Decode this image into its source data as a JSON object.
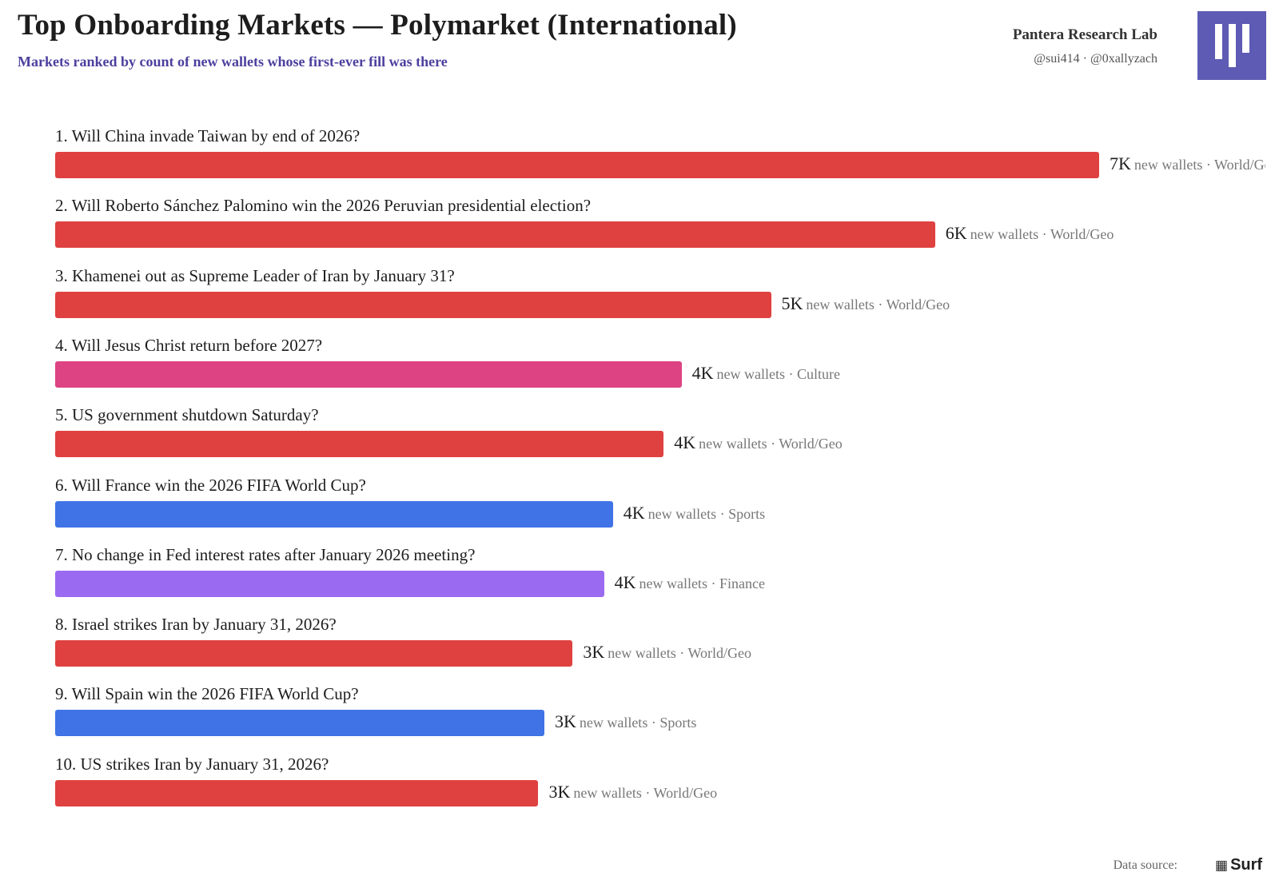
{
  "header": {
    "title": "Top Onboarding Markets — Polymarket (International)",
    "subtitle": "Markets ranked by count of new wallets whose first-ever fill was there",
    "brand_name": "Pantera Research Lab",
    "brand_handles": "@sui414 · @0xallyzach"
  },
  "footer": {
    "data_source_label": "Data source:",
    "source_name": "Surf"
  },
  "colors": {
    "World/Geo": "#df4140",
    "Culture": "#dd4383",
    "Sports": "#3f73e6",
    "Finance": "#9a6bf0",
    "subtitle": "#4b3f9e",
    "logo": "#5d5bb3"
  },
  "chart_data": {
    "type": "bar",
    "orientation": "horizontal",
    "value_label_suffix": "new wallets",
    "xlim": [
      0,
      7
    ],
    "grid": false,
    "categories": [
      "1. Will China invade Taiwan by end of 2026?",
      "2. Will Roberto Sánchez Palomino win the 2026 Peruvian presidential election?",
      "3. Khamenei out as Supreme Leader of Iran by January 31?",
      "4. Will Jesus Christ return before 2027?",
      "5. US government shutdown Saturday?",
      "6. Will France win the 2026 FIFA World Cup?",
      "7. No change in Fed interest rates after January 2026 meeting?",
      "8. Israel strikes Iran by January 31, 2026?",
      "9. Will Spain win the 2026 FIFA World Cup?",
      "10. US strikes Iran by January 31, 2026?"
    ],
    "values": [
      7.0,
      5.9,
      4.8,
      4.2,
      4.08,
      3.74,
      3.68,
      3.47,
      3.28,
      3.24
    ],
    "value_labels": [
      "7K",
      "6K",
      "5K",
      "4K",
      "4K",
      "4K",
      "4K",
      "3K",
      "3K",
      "3K"
    ],
    "groups": [
      "World/Geo",
      "World/Geo",
      "World/Geo",
      "Culture",
      "World/Geo",
      "Sports",
      "Finance",
      "World/Geo",
      "Sports",
      "World/Geo"
    ]
  }
}
